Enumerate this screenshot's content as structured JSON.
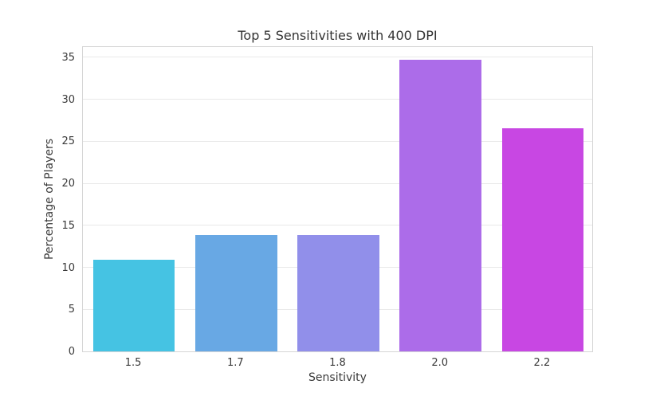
{
  "chart_data": {
    "type": "bar",
    "title": "Top 5 Sensitivities with 400 DPI",
    "xlabel": "Sensitivity",
    "ylabel": "Percentage of Players",
    "categories": [
      "1.5",
      "1.7",
      "1.8",
      "2.0",
      "2.2"
    ],
    "values": [
      10.9,
      13.8,
      13.8,
      34.7,
      26.5
    ],
    "bar_colors": [
      "#45c3e3",
      "#68a8e4",
      "#918fea",
      "#ac6ce9",
      "#c847e3"
    ],
    "yticks": [
      0,
      5,
      10,
      15,
      20,
      25,
      30,
      35
    ],
    "ylim": [
      0,
      36.4
    ],
    "bar_width_fraction": 0.8,
    "grid": "horizontal",
    "legend": "none",
    "colors": {
      "background": "#ffffff",
      "plot_background": "#ffffff",
      "grid": "#e9e9e9",
      "spine": "#d6d6d6",
      "text": "#3a3a3a"
    }
  }
}
